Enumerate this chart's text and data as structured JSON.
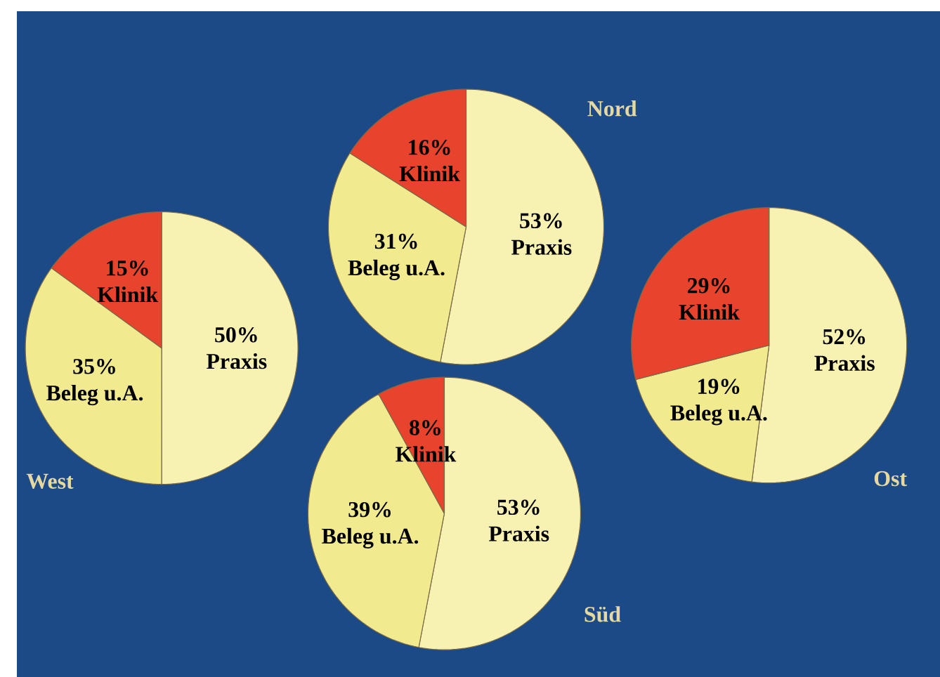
{
  "chart_data": [
    {
      "type": "pie",
      "title": "Nord",
      "categories": [
        "Praxis",
        "Beleg u.A.",
        "Klinik"
      ],
      "values": [
        53,
        31,
        16
      ],
      "value_labels": [
        "53%",
        "31%",
        "16%"
      ],
      "colors": [
        "#f7f2b2",
        "#f2ea8e",
        "#e8432c"
      ]
    },
    {
      "type": "pie",
      "title": "West",
      "categories": [
        "Praxis",
        "Beleg u.A.",
        "Klinik"
      ],
      "values": [
        50,
        35,
        15
      ],
      "value_labels": [
        "50%",
        "35%",
        "15%"
      ],
      "colors": [
        "#f7f2b2",
        "#f2ea8e",
        "#e8432c"
      ]
    },
    {
      "type": "pie",
      "title": "Ost",
      "categories": [
        "Praxis",
        "Beleg u.A.",
        "Klinik"
      ],
      "values": [
        52,
        19,
        29
      ],
      "value_labels": [
        "52%",
        "19%",
        "29%"
      ],
      "colors": [
        "#f7f2b2",
        "#f2ea8e",
        "#e8432c"
      ]
    },
    {
      "type": "pie",
      "title": "Süd",
      "categories": [
        "Praxis",
        "Beleg u.A.",
        "Klinik"
      ],
      "values": [
        53,
        39,
        8
      ],
      "value_labels": [
        "53%",
        "39%",
        "8%"
      ],
      "colors": [
        "#f7f2b2",
        "#f2ea8e",
        "#e8432c"
      ]
    }
  ]
}
